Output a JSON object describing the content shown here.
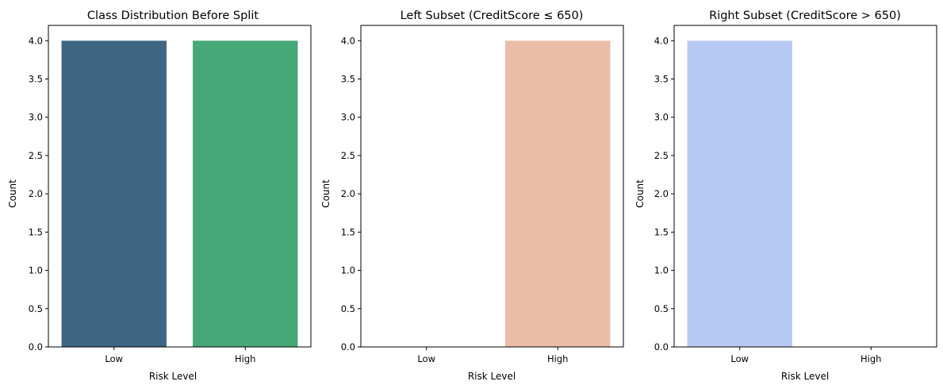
{
  "chart_data": [
    {
      "type": "bar",
      "title": "Class Distribution Before Split",
      "xlabel": "Risk Level",
      "ylabel": "Count",
      "categories": [
        "Low",
        "High"
      ],
      "values": [
        4,
        4
      ],
      "colors": [
        "#3e6682",
        "#46a877"
      ],
      "ylim": [
        0,
        4.2
      ],
      "yticks": [
        "0.0",
        "0.5",
        "1.0",
        "1.5",
        "2.0",
        "2.5",
        "3.0",
        "3.5",
        "4.0"
      ],
      "grid": false
    },
    {
      "type": "bar",
      "title": "Left Subset (CreditScore ≤ 650)",
      "xlabel": "Risk Level",
      "ylabel": "Count",
      "categories": [
        "Low",
        "High"
      ],
      "values": [
        0,
        4
      ],
      "colors": [
        "#b8cbf2",
        "#ebbca6"
      ],
      "ylim": [
        0,
        4.2
      ],
      "yticks": [
        "0.0",
        "0.5",
        "1.0",
        "1.5",
        "2.0",
        "2.5",
        "3.0",
        "3.5",
        "4.0"
      ],
      "grid": false
    },
    {
      "type": "bar",
      "title": "Right Subset (CreditScore > 650)",
      "xlabel": "Risk Level",
      "ylabel": "Count",
      "categories": [
        "Low",
        "High"
      ],
      "values": [
        4,
        0
      ],
      "colors": [
        "#b6c9f2",
        "#ebbca6"
      ],
      "ylim": [
        0,
        4.2
      ],
      "yticks": [
        "0.0",
        "0.5",
        "1.0",
        "1.5",
        "2.0",
        "2.5",
        "3.0",
        "3.5",
        "4.0"
      ],
      "grid": false
    }
  ]
}
